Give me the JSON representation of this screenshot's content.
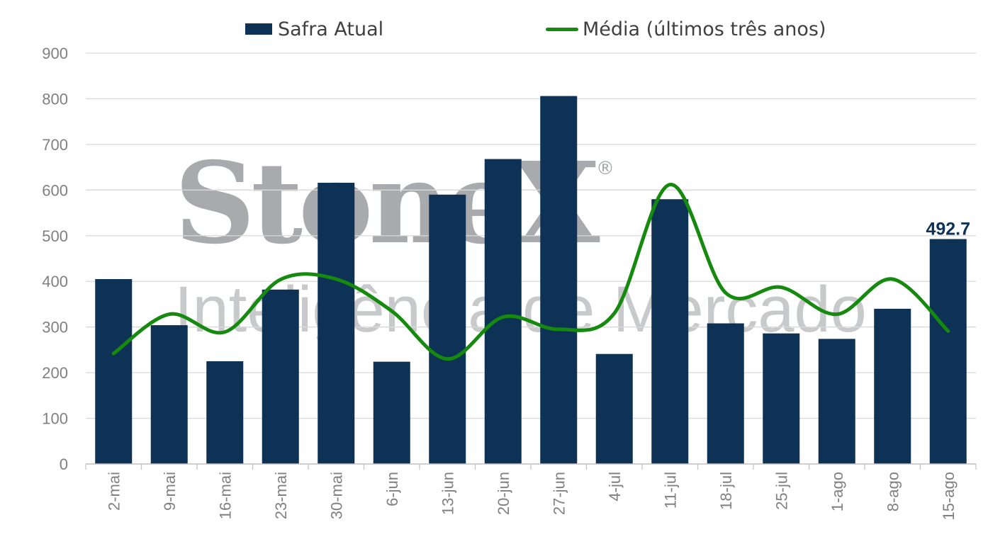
{
  "colors": {
    "bar": "#0d3256",
    "line": "#168a0f",
    "grid": "#d9d9d9",
    "axis_text": "#808080",
    "watermark": "#9ea0a3"
  },
  "watermark": {
    "brand": "StoneX",
    "registered": "®",
    "tagline": "Inteligência de Mercado"
  },
  "chart_data": {
    "type": "bar",
    "categories": [
      "2-mai",
      "9-mai",
      "16-mai",
      "23-mai",
      "30-mai",
      "6-jun",
      "13-jun",
      "20-jun",
      "27-jun",
      "4-jul",
      "11-jul",
      "18-jul",
      "25-jul",
      "1-ago",
      "8-ago",
      "15-ago"
    ],
    "series": [
      {
        "name": "Safra Atual",
        "type": "bar",
        "values": [
          405,
          304,
          225,
          382,
          616,
          224,
          590,
          668,
          806,
          241,
          580,
          308,
          286,
          274,
          340,
          492.7
        ]
      },
      {
        "name": "Média (últimos três anos)",
        "type": "line",
        "smooth": true,
        "values": [
          242,
          328,
          289,
          404,
          405,
          335,
          230,
          322,
          295,
          330,
          612,
          375,
          387,
          328,
          405,
          291
        ]
      }
    ],
    "data_labels": [
      {
        "category": "15-ago",
        "text": "492.7"
      }
    ],
    "yticks": [
      "0",
      "100",
      "200",
      "300",
      "400",
      "500",
      "600",
      "700",
      "800",
      "900"
    ],
    "ylim": [
      0,
      900
    ],
    "grid": true,
    "legend": "top"
  }
}
